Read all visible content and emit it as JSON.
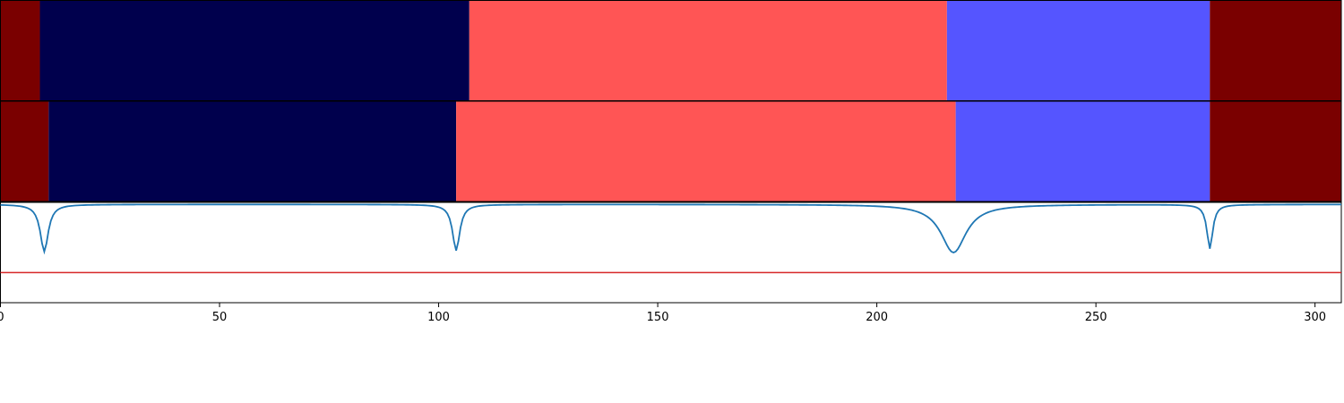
{
  "chart_data": {
    "type": "segmentation-plot",
    "x_range": [
      0,
      306
    ],
    "x_ticks": [
      0,
      50,
      100,
      150,
      200,
      250,
      300
    ],
    "x_tick_labels": [
      "0",
      "50",
      "100",
      "150",
      "200",
      "250",
      "300"
    ],
    "label_colors": {
      "0": "#7a0000",
      "1": "#00004d",
      "2": "#ff5555",
      "3": "#5555ff"
    },
    "segment_rows": [
      {
        "segments": [
          {
            "start": 0,
            "end": 9,
            "label": 0
          },
          {
            "start": 9,
            "end": 107,
            "label": 1
          },
          {
            "start": 107,
            "end": 216,
            "label": 2
          },
          {
            "start": 216,
            "end": 276,
            "label": 3
          },
          {
            "start": 276,
            "end": 306,
            "label": 0
          }
        ]
      },
      {
        "segments": [
          {
            "start": 0,
            "end": 11,
            "label": 0
          },
          {
            "start": 11,
            "end": 104,
            "label": 1
          },
          {
            "start": 104,
            "end": 218,
            "label": 2
          },
          {
            "start": 218,
            "end": 276,
            "label": 3
          },
          {
            "start": 276,
            "end": 306,
            "label": 0
          }
        ]
      }
    ],
    "signal_panel": {
      "y_range": [
        0,
        1
      ],
      "line_color": "#1f77b4",
      "threshold": 0.3,
      "threshold_color": "#d62728",
      "baseline": 0.98,
      "dips": [
        {
          "x": 10,
          "depth": 0.47,
          "width": 1.1
        },
        {
          "x": 104,
          "depth": 0.46,
          "width": 1.0
        },
        {
          "x": 217.5,
          "depth": 0.48,
          "width": 3.5
        },
        {
          "x": 276,
          "depth": 0.44,
          "width": 0.8
        }
      ]
    }
  }
}
